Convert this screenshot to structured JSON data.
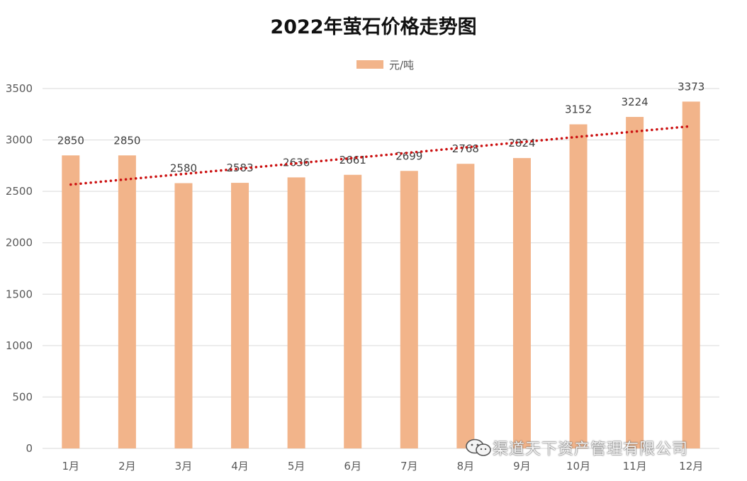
{
  "chart_data": {
    "type": "bar",
    "title": "2022年萤石价格走势图",
    "categories": [
      "1月",
      "2月",
      "3月",
      "4月",
      "5月",
      "6月",
      "7月",
      "8月",
      "9月",
      "10月",
      "11月",
      "12月"
    ],
    "series": [
      {
        "name": "元/吨",
        "values": [
          2850,
          2850,
          2580,
          2583,
          2636,
          2661,
          2699,
          2768,
          2824,
          3152,
          3224,
          3373
        ]
      }
    ],
    "data_labels": [
      "2850",
      "2850",
      "2580",
      "2583",
      "2636",
      "2661",
      "2699",
      "2768",
      "2824",
      "3152",
      "3224",
      "3373"
    ],
    "trendline": {
      "type": "linear",
      "style": "dotted",
      "color": "#cc1111"
    },
    "ylim": [
      0,
      3500
    ],
    "yticks": [
      0,
      500,
      1000,
      1500,
      2000,
      2500,
      3000,
      3500
    ],
    "xlabel": "",
    "ylabel": "",
    "legend_position": "top-center",
    "grid": true,
    "bar_color": "#f2b48a"
  },
  "watermark": {
    "text": "渠道天下资产管理有限公司",
    "icon": "wechat-icon"
  }
}
